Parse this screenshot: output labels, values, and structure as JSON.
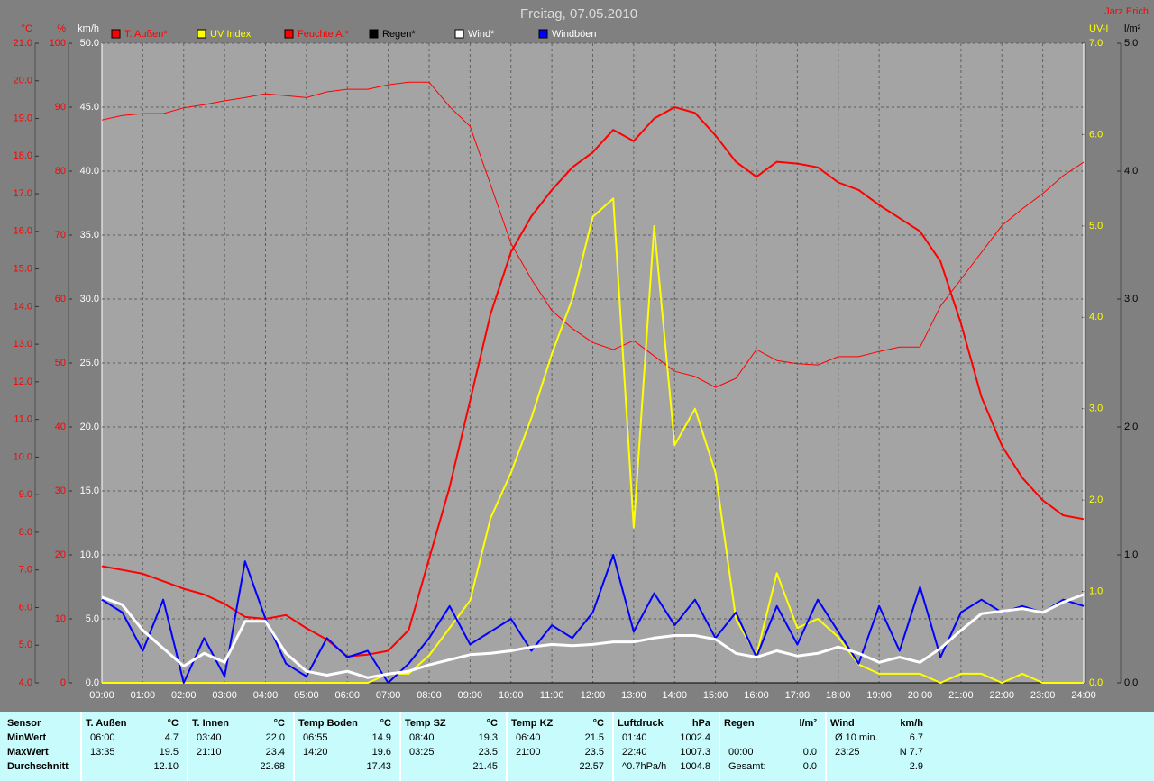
{
  "chart_data": {
    "type": "line",
    "title": "Freitag, 07.05.2010",
    "author": "Jarz Erich",
    "x": [
      0,
      0.5,
      1,
      1.5,
      2,
      2.5,
      3,
      3.5,
      4,
      4.5,
      5,
      5.5,
      6,
      6.5,
      7,
      7.5,
      8,
      8.5,
      9,
      9.5,
      10,
      10.5,
      11,
      11.5,
      12,
      12.5,
      13,
      13.5,
      14,
      14.5,
      15,
      15.5,
      16,
      16.5,
      17,
      17.5,
      18,
      18.5,
      19,
      19.5,
      20,
      20.5,
      21,
      21.5,
      22,
      22.5,
      23,
      23.5,
      24
    ],
    "xlim": [
      0,
      24
    ],
    "xticks": [
      {
        "value": 0,
        "label": "00:00"
      },
      {
        "value": 1,
        "label": "01:00"
      },
      {
        "value": 2,
        "label": "02:00"
      },
      {
        "value": 3,
        "label": "03:00"
      },
      {
        "value": 4,
        "label": "04:00"
      },
      {
        "value": 5,
        "label": "05:00"
      },
      {
        "value": 6,
        "label": "06:00"
      },
      {
        "value": 7,
        "label": "07:00"
      },
      {
        "value": 8,
        "label": "08:00"
      },
      {
        "value": 9,
        "label": "09:00"
      },
      {
        "value": 10,
        "label": "10:00"
      },
      {
        "value": 11,
        "label": "11:00"
      },
      {
        "value": 12,
        "label": "12:00"
      },
      {
        "value": 13,
        "label": "13:00"
      },
      {
        "value": 14,
        "label": "14:00"
      },
      {
        "value": 15,
        "label": "15:00"
      },
      {
        "value": 16,
        "label": "16:00"
      },
      {
        "value": 17,
        "label": "17:00"
      },
      {
        "value": 18,
        "label": "18:00"
      },
      {
        "value": 19,
        "label": "19:00"
      },
      {
        "value": 20,
        "label": "20:00"
      },
      {
        "value": 21,
        "label": "21:00"
      },
      {
        "value": 22,
        "label": "22:00"
      },
      {
        "value": 23,
        "label": "23:00"
      },
      {
        "value": 24,
        "label": "24:00"
      }
    ],
    "grid": true,
    "grid_axis": 2,
    "axes": [
      {
        "title": "°C",
        "color": "#ff0000",
        "side": "left",
        "lim": [
          4,
          21
        ],
        "ticks": [
          {
            "value": 4,
            "label": "4.0"
          },
          {
            "value": 5,
            "label": "5.0"
          },
          {
            "value": 6,
            "label": "6.0"
          },
          {
            "value": 7,
            "label": "7.0"
          },
          {
            "value": 8,
            "label": "8.0"
          },
          {
            "value": 9,
            "label": "9.0"
          },
          {
            "value": 10,
            "label": "10.0"
          },
          {
            "value": 11,
            "label": "11.0"
          },
          {
            "value": 12,
            "label": "12.0"
          },
          {
            "value": 13,
            "label": "13.0"
          },
          {
            "value": 14,
            "label": "14.0"
          },
          {
            "value": 15,
            "label": "15.0"
          },
          {
            "value": 16,
            "label": "16.0"
          },
          {
            "value": 17,
            "label": "17.0"
          },
          {
            "value": 18,
            "label": "18.0"
          },
          {
            "value": 19,
            "label": "19.0"
          },
          {
            "value": 20,
            "label": "20.0"
          },
          {
            "value": 21,
            "label": "21.0"
          }
        ]
      },
      {
        "title": "%",
        "color": "#ff0000",
        "side": "left",
        "lim": [
          0,
          100
        ],
        "ticks": [
          0,
          10,
          20,
          30,
          40,
          50,
          60,
          70,
          80,
          90,
          100
        ]
      },
      {
        "title": "km/h",
        "color": "#ffffff",
        "side": "left",
        "lim": [
          0,
          50
        ],
        "ticks": [
          {
            "value": 0,
            "label": "0.0"
          },
          {
            "value": 5,
            "label": "5.0"
          },
          {
            "value": 10,
            "label": "10.0"
          },
          {
            "value": 15,
            "label": "15.0"
          },
          {
            "value": 20,
            "label": "20.0"
          },
          {
            "value": 25,
            "label": "25.0"
          },
          {
            "value": 30,
            "label": "30.0"
          },
          {
            "value": 35,
            "label": "35.0"
          },
          {
            "value": 40,
            "label": "40.0"
          },
          {
            "value": 45,
            "label": "45.0"
          },
          {
            "value": 50,
            "label": "50.0"
          }
        ]
      },
      {
        "title": "UV-I",
        "color": "#ffff00",
        "side": "right",
        "lim": [
          0,
          7
        ],
        "ticks": [
          {
            "value": 0,
            "label": "0.0"
          },
          {
            "value": 1,
            "label": "1.0"
          },
          {
            "value": 2,
            "label": "2.0"
          },
          {
            "value": 3,
            "label": "3.0"
          },
          {
            "value": 4,
            "label": "4.0"
          },
          {
            "value": 5,
            "label": "5.0"
          },
          {
            "value": 6,
            "label": "6.0"
          },
          {
            "value": 7,
            "label": "7.0"
          }
        ]
      },
      {
        "title": "l/m²",
        "color": "#000000",
        "side": "right",
        "lim": [
          0,
          5
        ],
        "ticks": [
          {
            "value": 0,
            "label": "0.0"
          },
          {
            "value": 1,
            "label": "1.0"
          },
          {
            "value": 2,
            "label": "2.0"
          },
          {
            "value": 3,
            "label": "3.0"
          },
          {
            "value": 4,
            "label": "4.0"
          },
          {
            "value": 5,
            "label": "5.0"
          }
        ]
      }
    ],
    "series": [
      {
        "name": "T. Außen*",
        "color": "#ff0000",
        "legend_color": "#ff0000",
        "width": 2,
        "axis": 0,
        "values": [
          7.1,
          7.0,
          6.9,
          6.7,
          6.5,
          6.35,
          6.1,
          5.75,
          5.7,
          5.8,
          5.45,
          5.15,
          4.7,
          4.75,
          4.85,
          5.4,
          7.3,
          9.2,
          11.5,
          13.8,
          15.45,
          16.4,
          17.1,
          17.7,
          18.1,
          18.7,
          18.4,
          19.0,
          19.3,
          19.15,
          18.55,
          17.85,
          17.45,
          17.85,
          17.8,
          17.7,
          17.3,
          17.1,
          16.7,
          16.35,
          16.0,
          15.2,
          13.55,
          11.6,
          10.3,
          9.45,
          8.85,
          8.45,
          8.35
        ]
      },
      {
        "name": "UV Index",
        "color": "#ffff00",
        "legend_color": "#ffff00",
        "width": 2,
        "axis": 3,
        "values": [
          0,
          0,
          0,
          0,
          0,
          0,
          0,
          0,
          0,
          0,
          0,
          0,
          0,
          0,
          0.1,
          0.1,
          0.3,
          0.6,
          0.9,
          1.8,
          2.3,
          2.9,
          3.6,
          4.2,
          5.1,
          5.3,
          1.7,
          5.0,
          2.6,
          3.0,
          2.3,
          0.7,
          0.3,
          1.2,
          0.6,
          0.7,
          0.5,
          0.2,
          0.1,
          0.1,
          0.1,
          0,
          0.1,
          0.1,
          0,
          0.1,
          0,
          0,
          0
        ]
      },
      {
        "name": "Feuchte A.*",
        "color": "#ff0000",
        "legend_color": "#ff0000",
        "width": 1,
        "axis": 1,
        "values": [
          88,
          88.7,
          89,
          89,
          89.9,
          90.4,
          91,
          91.5,
          92.1,
          91.8,
          91.5,
          92.4,
          92.8,
          92.8,
          93.5,
          93.9,
          93.9,
          90.1,
          87,
          77.9,
          68.7,
          63.1,
          58.2,
          55.4,
          53.2,
          52.1,
          53.5,
          51.1,
          48.7,
          47.9,
          46.2,
          47.6,
          52.1,
          50.4,
          49.9,
          49.7,
          51,
          51,
          51.8,
          52.5,
          52.5,
          58.9,
          63.1,
          67.3,
          71.5,
          74.1,
          76.5,
          79.3,
          81.4
        ]
      },
      {
        "name": "Regen*",
        "color": "#000000",
        "legend_color": "#000000",
        "width": 1,
        "axis": 4,
        "values": [
          0,
          0,
          0,
          0,
          0,
          0,
          0,
          0,
          0,
          0,
          0,
          0,
          0,
          0,
          0,
          0,
          0,
          0,
          0,
          0,
          0,
          0,
          0,
          0,
          0,
          0,
          0,
          0,
          0,
          0,
          0,
          0,
          0,
          0,
          0,
          0,
          0,
          0,
          0,
          0,
          0,
          0,
          0,
          0,
          0,
          0,
          0,
          0,
          0
        ]
      },
      {
        "name": "Wind*",
        "color": "#ffffff",
        "legend_color": "#ffffff",
        "width": 3,
        "axis": 2,
        "values": [
          6.7,
          6.1,
          4.1,
          2.7,
          1.3,
          2.3,
          1.6,
          4.8,
          4.8,
          2.3,
          0.9,
          0.6,
          0.9,
          0.4,
          0.7,
          0.9,
          1.4,
          1.8,
          2.2,
          2.3,
          2.5,
          2.8,
          3.0,
          2.9,
          3.0,
          3.2,
          3.2,
          3.5,
          3.7,
          3.7,
          3.4,
          2.3,
          2.0,
          2.5,
          2.1,
          2.3,
          2.8,
          2.3,
          1.6,
          2.0,
          1.6,
          2.7,
          4.1,
          5.4,
          5.6,
          5.8,
          5.5,
          6.3,
          6.9
        ]
      },
      {
        "name": "Windböen",
        "color": "#0000ff",
        "legend_color": "#ffffff",
        "width": 2,
        "axis": 2,
        "values": [
          6.5,
          5.5,
          2.5,
          6.5,
          0,
          3.5,
          0.5,
          9.5,
          5.0,
          1.5,
          0.5,
          3.5,
          2.0,
          2.5,
          0,
          1.5,
          3.5,
          6.0,
          3.0,
          4.0,
          5.0,
          2.5,
          4.5,
          3.5,
          5.5,
          10.0,
          4.0,
          7.0,
          4.5,
          6.5,
          3.5,
          5.5,
          2.0,
          6.0,
          3.0,
          6.5,
          4.0,
          1.5,
          6.0,
          2.5,
          7.5,
          2.0,
          5.5,
          6.5,
          5.5,
          6.0,
          5.5,
          6.5,
          6.0
        ]
      }
    ]
  },
  "table": {
    "row_labels": [
      "Sensor",
      "MinWert",
      "MaxWert",
      "Durchschnitt"
    ],
    "columns": [
      {
        "name": "T. Außen",
        "unit": "°C",
        "rows": [
          {
            "time": "06:00",
            "value": "4.7"
          },
          {
            "time": "13:35",
            "value": "19.5"
          },
          {
            "value": "12.10"
          }
        ]
      },
      {
        "name": "T. Innen",
        "unit": "°C",
        "rows": [
          {
            "time": "03:40",
            "value": "22.0"
          },
          {
            "time": "21:10",
            "value": "23.4"
          },
          {
            "value": "22.68"
          }
        ]
      },
      {
        "name": "Temp Boden",
        "unit": "°C",
        "rows": [
          {
            "time": "06:55",
            "value": "14.9"
          },
          {
            "time": "14:20",
            "value": "19.6"
          },
          {
            "value": "17.43"
          }
        ]
      },
      {
        "name": "Temp SZ",
        "unit": "°C",
        "rows": [
          {
            "time": "08:40",
            "value": "19.3"
          },
          {
            "time": "03:25",
            "value": "23.5"
          },
          {
            "value": "21.45"
          }
        ]
      },
      {
        "name": "Temp KZ",
        "unit": "°C",
        "rows": [
          {
            "time": "06:40",
            "value": "21.5"
          },
          {
            "time": "21:00",
            "value": "23.5"
          },
          {
            "value": "22.57"
          }
        ]
      },
      {
        "name": "Luftdruck",
        "unit": "hPa",
        "rows": [
          {
            "time": "01:40",
            "value": "1002.4"
          },
          {
            "time": "22:40",
            "value": "1007.3"
          },
          {
            "time": "^0.7hPa/h",
            "value": "1004.8"
          }
        ]
      },
      {
        "name": "Regen",
        "unit": "l/m²",
        "rows": [
          null,
          {
            "time": "00:00",
            "value": "0.0"
          },
          {
            "time": "Gesamt:",
            "value": "0.0"
          }
        ]
      },
      {
        "name": "Wind",
        "unit": "km/h",
        "rows": [
          {
            "time": "Ø 10 min.",
            "value": "6.7"
          },
          {
            "time": "23:25",
            "value": "N 7.7"
          },
          {
            "value": "2.9"
          }
        ]
      }
    ]
  }
}
